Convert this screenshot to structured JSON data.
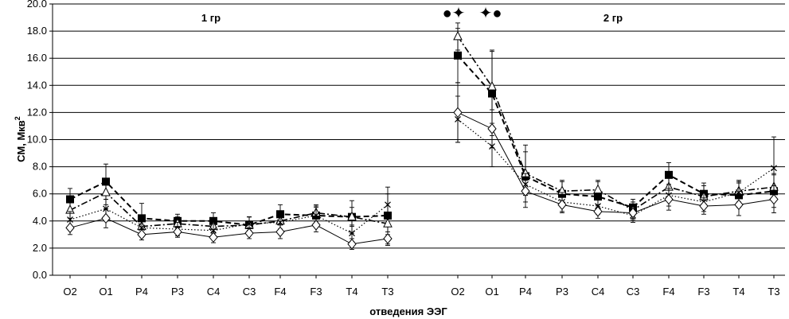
{
  "chart_data": {
    "type": "line",
    "ylabel_main": "СМ, Мкв",
    "ylabel_sup": "2",
    "xlabel": "отведения ЭЭГ",
    "ylim": [
      0,
      20
    ],
    "yticks": [
      "0.0",
      "2.0",
      "4.0",
      "6.0",
      "8.0",
      "10.0",
      "12.0",
      "14.0",
      "16.0",
      "18.0",
      "20.0"
    ],
    "grid": "horizontal",
    "panels": [
      {
        "label": "1 гр",
        "categories": [
          "O2",
          "O1",
          "P4",
          "P3",
          "C4",
          "C3",
          "F4",
          "F3",
          "T4",
          "T3"
        ],
        "series": [
          {
            "name": "filled-square",
            "marker": "square",
            "line": "dash",
            "values": [
              5.6,
              6.9,
              4.2,
              4.0,
              4.0,
              3.7,
              4.5,
              4.4,
              4.3,
              4.4
            ],
            "err": [
              0.8,
              1.3,
              1.1,
              0.5,
              0.6,
              0.6,
              0.7,
              0.7,
              1.2,
              2.1
            ]
          },
          {
            "name": "triangle",
            "marker": "triangle",
            "line": "dashdot",
            "values": [
              4.8,
              6.1,
              3.6,
              3.8,
              3.6,
              3.7,
              4.0,
              4.6,
              4.3,
              3.8
            ],
            "err": [
              0.6,
              0.9,
              0.7,
              0.5,
              0.5,
              0.6,
              0.6,
              0.6,
              0.7,
              0.8
            ]
          },
          {
            "name": "cross",
            "marker": "x",
            "line": "dot",
            "values": [
              4.1,
              4.9,
              3.5,
              3.4,
              3.3,
              3.8,
              3.9,
              4.4,
              3.1,
              5.2
            ],
            "err": [
              0.6,
              0.7,
              0.5,
              0.5,
              0.5,
              0.5,
              0.5,
              0.6,
              0.6,
              0.8
            ]
          },
          {
            "name": "diamond",
            "marker": "diamond",
            "line": "solid",
            "values": [
              3.5,
              4.2,
              3.0,
              3.2,
              2.8,
              3.1,
              3.2,
              3.7,
              2.3,
              2.7
            ],
            "err": [
              0.5,
              0.7,
              0.4,
              0.4,
              0.4,
              0.4,
              0.5,
              0.5,
              0.4,
              0.5
            ]
          }
        ]
      },
      {
        "label": "2 гр",
        "categories": [
          "O2",
          "O1",
          "P4",
          "P3",
          "C4",
          "C3",
          "F4",
          "F3",
          "T4",
          "T3"
        ],
        "series": [
          {
            "name": "filled-square",
            "marker": "square",
            "line": "dash",
            "values": [
              16.2,
              13.4,
              7.3,
              6.0,
              5.8,
              5.0,
              7.4,
              6.0,
              5.9,
              6.2
            ],
            "err": [
              2.0,
              3.1,
              2.3,
              0.9,
              1.1,
              0.6,
              0.9,
              0.8,
              0.9,
              1.2
            ]
          },
          {
            "name": "triangle",
            "marker": "triangle",
            "line": "dashdot",
            "values": [
              17.6,
              13.9,
              7.5,
              6.2,
              6.3,
              4.8,
              6.5,
              5.8,
              6.2,
              6.5
            ],
            "err": [
              1.0,
              2.7,
              1.6,
              0.8,
              0.7,
              0.6,
              0.9,
              0.8,
              0.8,
              1.0
            ]
          },
          {
            "name": "cross",
            "marker": "x",
            "line": "dot",
            "values": [
              11.5,
              9.5,
              6.7,
              5.4,
              5.1,
              4.4,
              5.9,
              5.4,
              6.1,
              7.9
            ],
            "err": [
              1.7,
              1.5,
              0.8,
              0.7,
              0.6,
              0.5,
              0.8,
              0.7,
              0.8,
              2.3
            ]
          },
          {
            "name": "diamond",
            "marker": "diamond",
            "line": "solid",
            "values": [
              12.0,
              10.8,
              6.2,
              5.2,
              4.7,
              4.6,
              5.6,
              5.1,
              5.2,
              5.6
            ],
            "err": [
              2.2,
              1.4,
              0.8,
              0.6,
              0.5,
              0.5,
              0.8,
              0.6,
              0.8,
              1.0
            ]
          }
        ]
      }
    ],
    "annotations": [
      {
        "text": "●✦",
        "near": "O2 (2 гр)"
      },
      {
        "text": "✦●",
        "near": "O1 (2 гр)"
      }
    ]
  }
}
